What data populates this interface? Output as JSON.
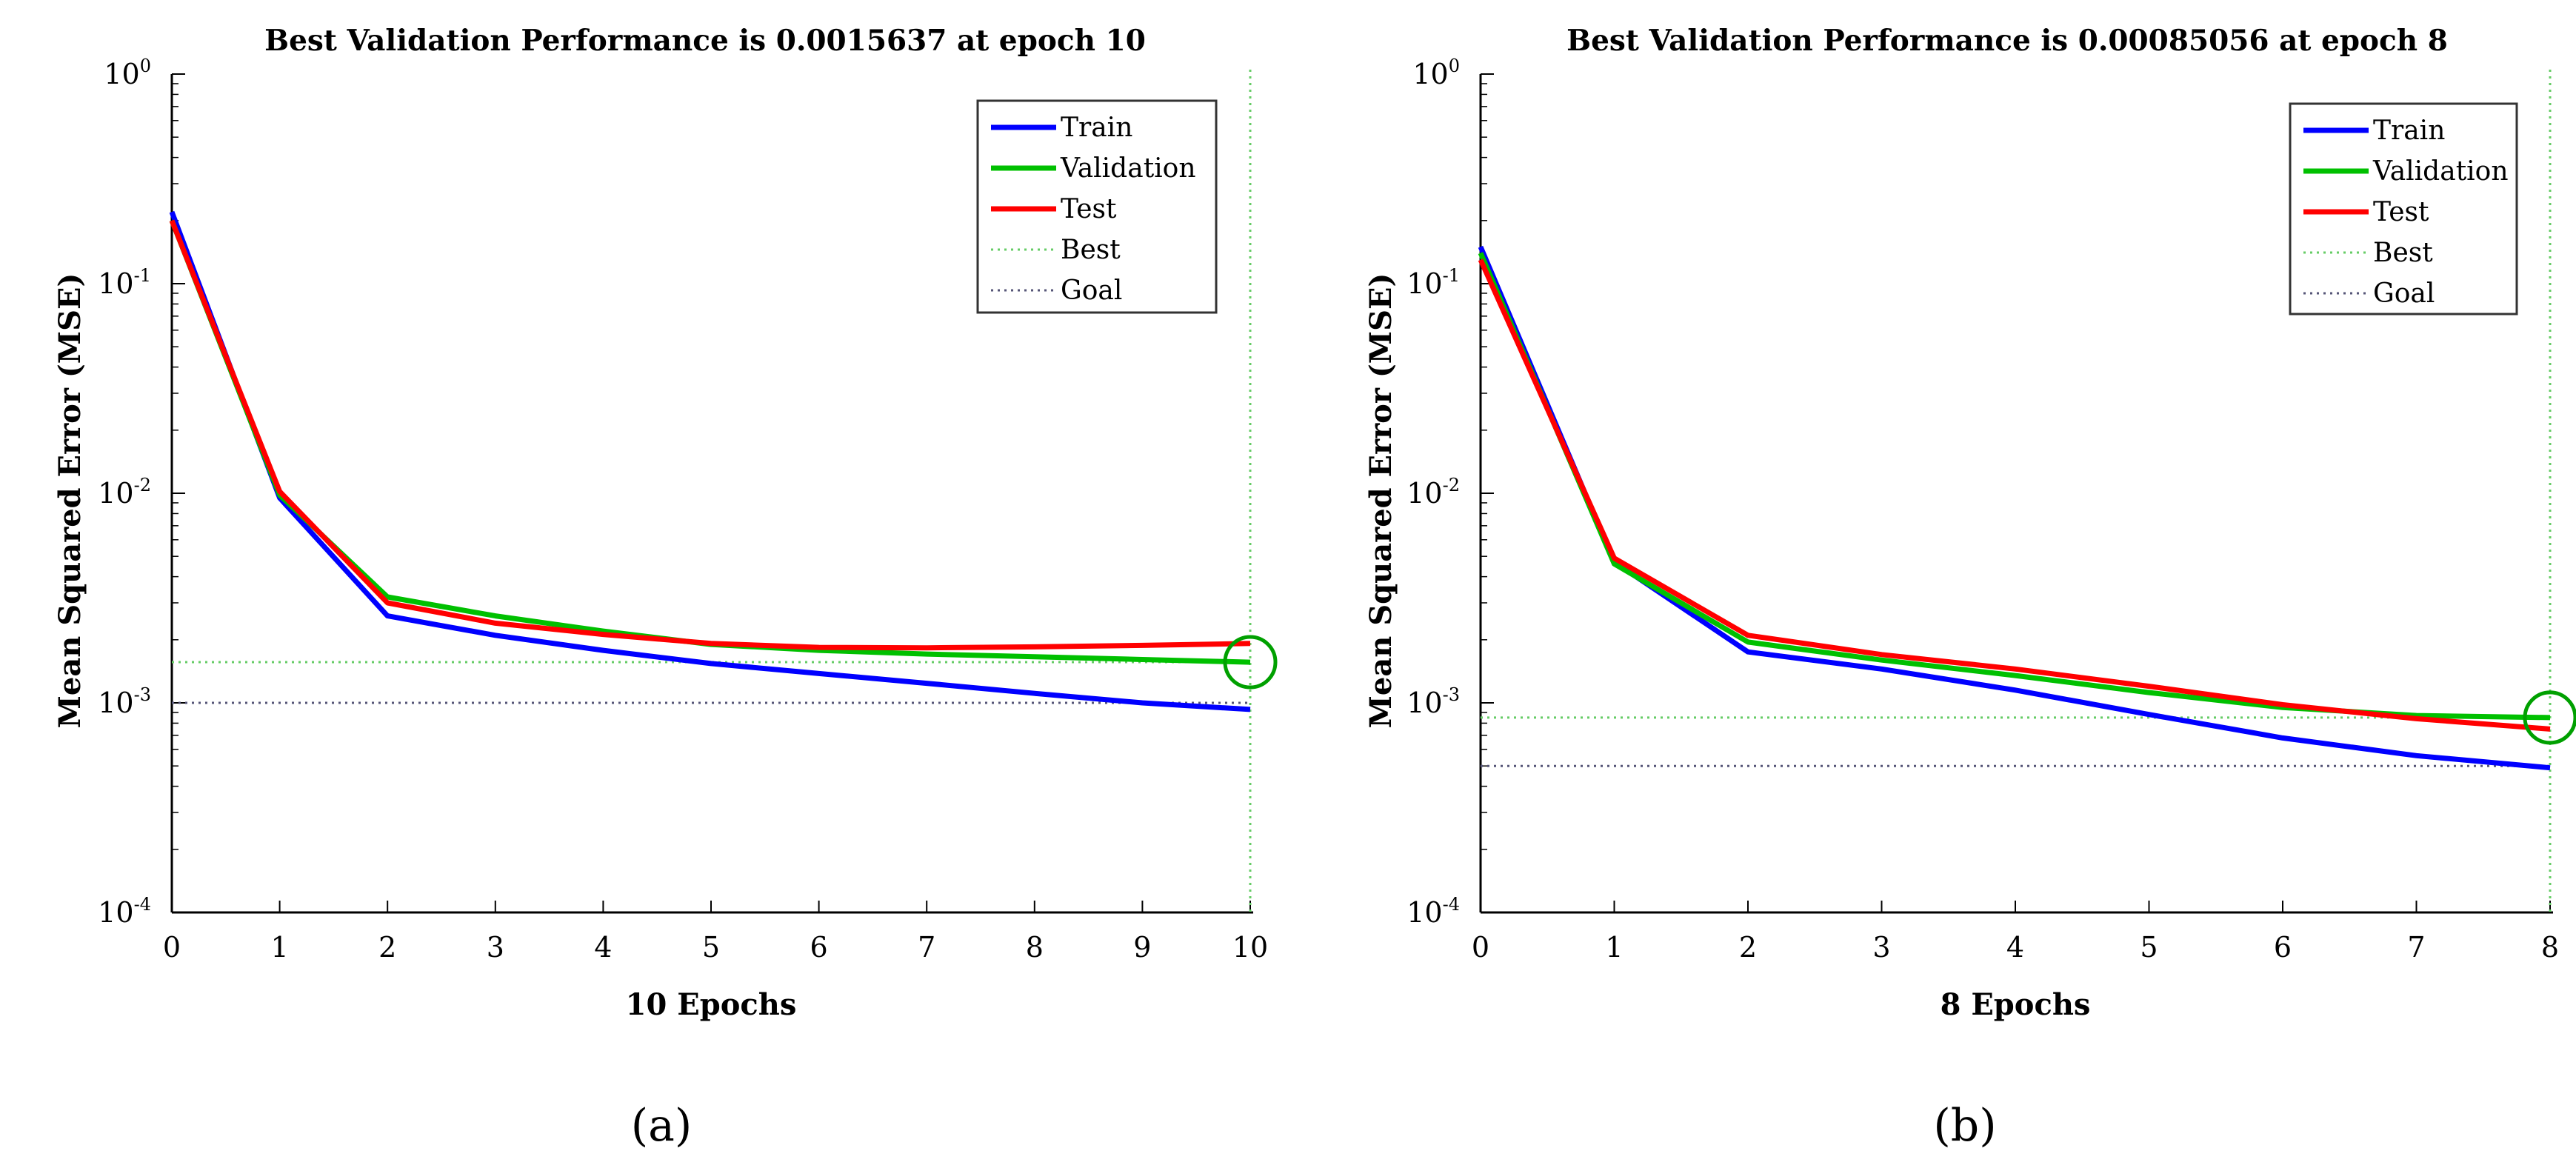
{
  "chart_data": [
    {
      "id": "a",
      "type": "line",
      "title": "Best Validation Performance is 0.0015637 at epoch 10",
      "xlabel": "10 Epochs",
      "ylabel": "Mean Squared Error (MSE)",
      "yscale": "log",
      "xlim": [
        0,
        10
      ],
      "ylim": [
        0.0001,
        1
      ],
      "x_ticks": [
        0,
        1,
        2,
        3,
        4,
        5,
        6,
        7,
        8,
        9,
        10
      ],
      "y_ticks": [
        {
          "exp": "0",
          "value": 1
        },
        {
          "exp": "-1",
          "value": 0.1
        },
        {
          "exp": "-2",
          "value": 0.01
        },
        {
          "exp": "-3",
          "value": 0.001
        },
        {
          "exp": "-4",
          "value": 0.0001
        }
      ],
      "series": [
        {
          "name": "Train",
          "color": "#0000ff",
          "x": [
            0,
            1,
            2,
            3,
            4,
            5,
            6,
            7,
            8,
            9,
            10
          ],
          "values": [
            0.22,
            0.0095,
            0.0026,
            0.0021,
            0.00178,
            0.00154,
            0.00138,
            0.00124,
            0.00111,
            0.001,
            0.00093
          ]
        },
        {
          "name": "Validation",
          "color": "#00c000",
          "x": [
            0,
            1,
            2,
            3,
            4,
            5,
            6,
            7,
            8,
            9,
            10
          ],
          "values": [
            0.2,
            0.0098,
            0.0032,
            0.0026,
            0.0022,
            0.0019,
            0.00178,
            0.00171,
            0.00166,
            0.00161,
            0.0015637
          ]
        },
        {
          "name": "Test",
          "color": "#ff0000",
          "x": [
            0,
            1,
            2,
            3,
            4,
            5,
            6,
            7,
            8,
            9,
            10
          ],
          "values": [
            0.2,
            0.0102,
            0.003,
            0.0024,
            0.00212,
            0.00192,
            0.00184,
            0.00183,
            0.00185,
            0.00188,
            0.00192
          ]
        }
      ],
      "best": {
        "epoch": 10,
        "value": 0.0015637,
        "color": "#00a000"
      },
      "goal": {
        "value": 0.001
      },
      "legend": [
        "Train",
        "Validation",
        "Test",
        "Best",
        "Goal"
      ],
      "caption": "(a)"
    },
    {
      "id": "b",
      "type": "line",
      "title": "Best Validation Performance is 0.00085056 at epoch 8",
      "xlabel": "8 Epochs",
      "ylabel": "Mean Squared Error (MSE)",
      "yscale": "log",
      "xlim": [
        0,
        8
      ],
      "ylim": [
        0.0001,
        1
      ],
      "x_ticks": [
        0,
        1,
        2,
        3,
        4,
        5,
        6,
        7,
        8
      ],
      "y_ticks": [
        {
          "exp": "0",
          "value": 1
        },
        {
          "exp": "-1",
          "value": 0.1
        },
        {
          "exp": "-2",
          "value": 0.01
        },
        {
          "exp": "-3",
          "value": 0.001
        },
        {
          "exp": "-4",
          "value": 0.0001
        }
      ],
      "series": [
        {
          "name": "Train",
          "color": "#0000ff",
          "x": [
            0,
            1,
            2,
            3,
            4,
            5,
            6,
            7,
            8
          ],
          "values": [
            0.15,
            0.0047,
            0.00175,
            0.00145,
            0.00115,
            0.00088,
            0.00068,
            0.00056,
            0.00049
          ]
        },
        {
          "name": "Validation",
          "color": "#00c000",
          "x": [
            0,
            1,
            2,
            3,
            4,
            5,
            6,
            7,
            8
          ],
          "values": [
            0.14,
            0.0046,
            0.00195,
            0.0016,
            0.00135,
            0.00112,
            0.00095,
            0.00087,
            0.00085056
          ]
        },
        {
          "name": "Test",
          "color": "#ff0000",
          "x": [
            0,
            1,
            2,
            3,
            4,
            5,
            6,
            7,
            8
          ],
          "values": [
            0.13,
            0.0049,
            0.0021,
            0.0017,
            0.00145,
            0.0012,
            0.00098,
            0.00084,
            0.00075
          ]
        }
      ],
      "best": {
        "epoch": 8,
        "value": 0.00085056,
        "color": "#00a000"
      },
      "goal": {
        "value": 0.0005
      },
      "legend": [
        "Train",
        "Validation",
        "Test",
        "Best",
        "Goal"
      ],
      "caption": "(b)"
    }
  ]
}
